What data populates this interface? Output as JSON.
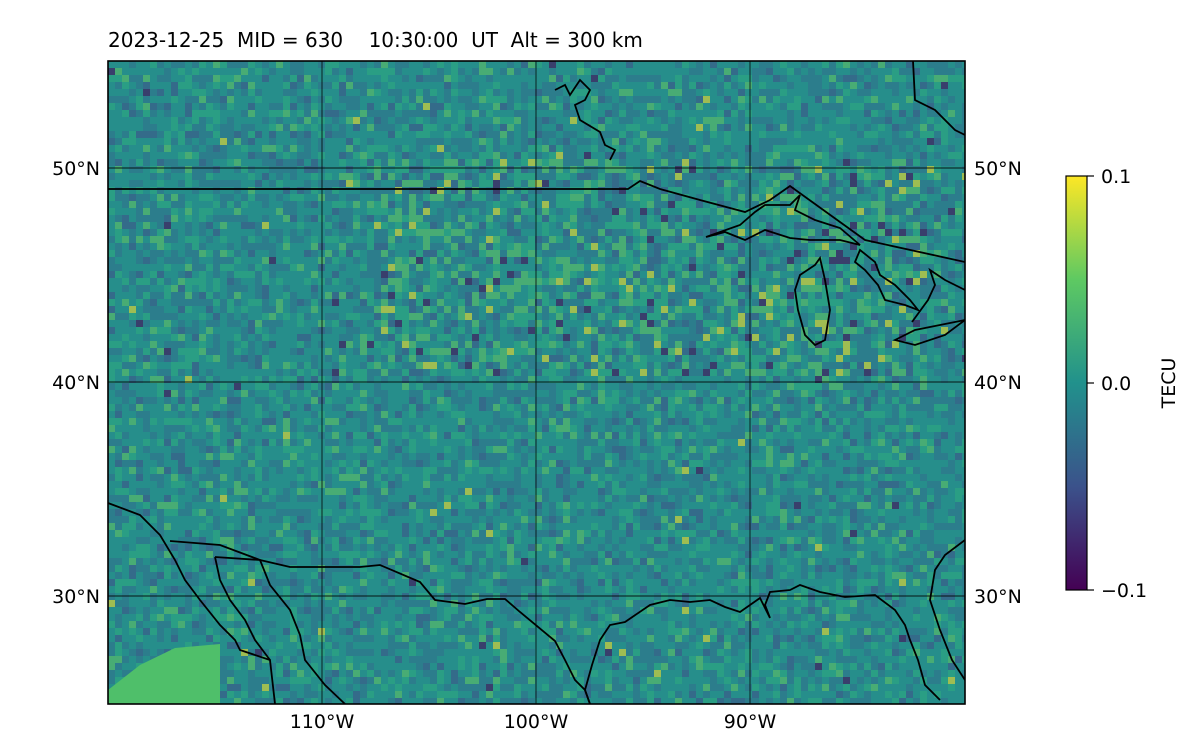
{
  "title": "2023-12-25  MID = 630    10:30:00  UT  Alt = 300 km",
  "map": {
    "lon_range": [
      -120,
      -80
    ],
    "lat_range": [
      25,
      55
    ],
    "lon_ticks": [
      {
        "value": -110,
        "label": "110°W"
      },
      {
        "value": -100,
        "label": "100°W"
      },
      {
        "value": -90,
        "label": "90°W"
      }
    ],
    "lat_ticks": [
      {
        "value": 50,
        "label": "50°N"
      },
      {
        "value": 40,
        "label": "40°N"
      },
      {
        "value": 30,
        "label": "30°N"
      }
    ],
    "gridlines": true,
    "colormap": "viridis",
    "background_color": "#2d8b8a"
  },
  "colorbar": {
    "label": "TECU",
    "ticks": [
      {
        "value": 0.1,
        "label": "0.1"
      },
      {
        "value": 0.0,
        "label": "0.0"
      },
      {
        "value": -0.1,
        "label": "−0.1"
      }
    ],
    "range": [
      -0.1,
      0.1
    ],
    "colors": [
      "#440154",
      "#3b528b",
      "#21918c",
      "#5ec962",
      "#fde725"
    ]
  }
}
